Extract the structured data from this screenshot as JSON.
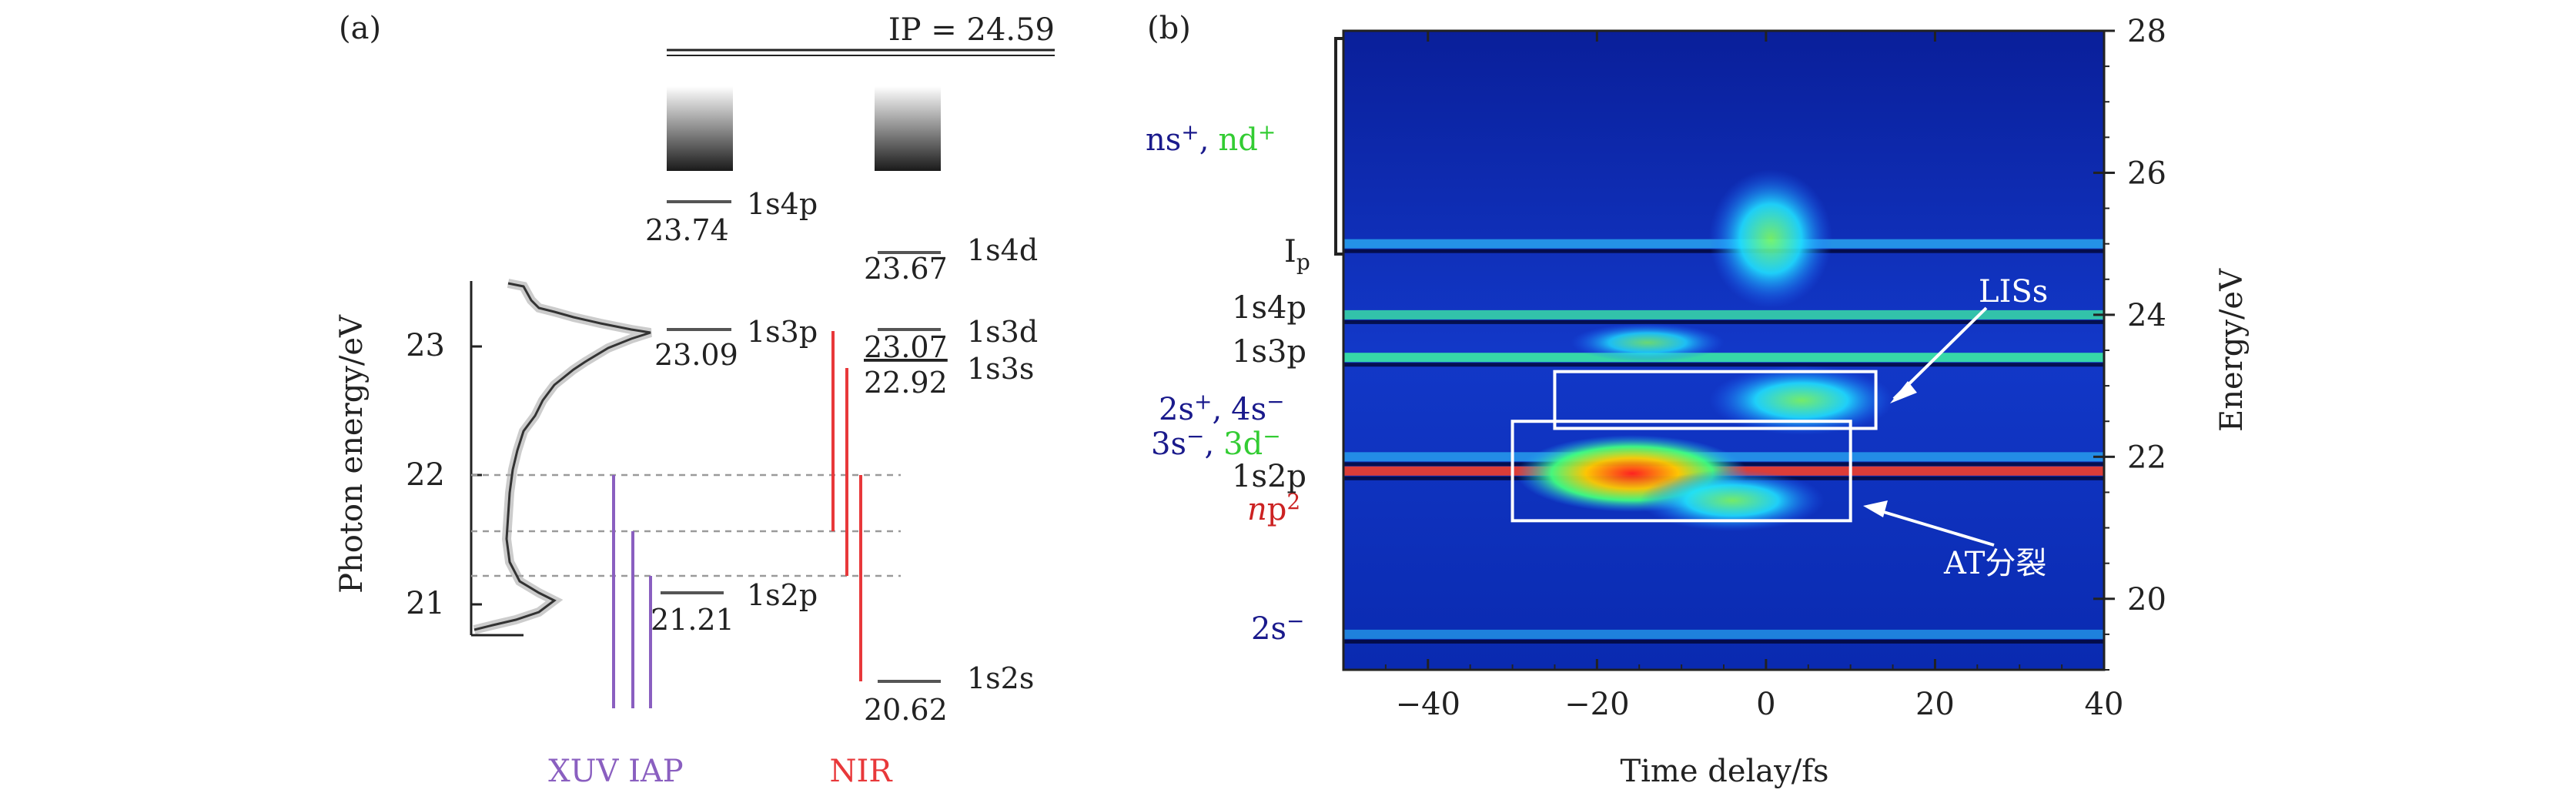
{
  "panel_a": {
    "label": "(a)",
    "ip_label": "IP = 24.59",
    "spectrum_ylabel": "Photon energy/eV",
    "spectrum_ticks": [
      "21",
      "22",
      "23"
    ],
    "levels_p": [
      {
        "name": "1s4p",
        "energy_label": "23.74"
      },
      {
        "name": "1s3p",
        "energy_label": "23.09"
      },
      {
        "name": "1s2p",
        "energy_label": "21.21"
      }
    ],
    "levels_sd": [
      {
        "name": "1s4d",
        "energy_label": "23.67"
      },
      {
        "name": "1s3d",
        "energy_label": "23.07"
      },
      {
        "name": "1s3s",
        "energy_label": "22.92"
      },
      {
        "name": "1s2s",
        "energy_label": "20.62"
      }
    ],
    "xuv_label": "XUV IAP",
    "nir_label": "NIR",
    "colors": {
      "xuv": "#8a5fc0",
      "nir": "#e8383a",
      "level": "#333333",
      "dashed": "#9a9a9a"
    }
  },
  "panel_b": {
    "label": "(b)",
    "left_labels": {
      "ns_plus": "ns",
      "ns_sup": "+",
      "comma": ",",
      "nd_plus": "nd",
      "nd_sup": "+",
      "ip": "I",
      "ip_sub": "p",
      "s1s4p": "1s4p",
      "s1s3p": "1s3p",
      "two_s_plus": "2s",
      "two_s_sup": "+",
      "four_s_minus": "4s",
      "four_s_sup": "−",
      "three_s_minus": "3s",
      "three_s_sup": "−",
      "three_d_minus": "3d",
      "three_d_sup": "−",
      "s1s2p": "1s2p",
      "np2": "n",
      "np2_rest": "p",
      "np2_sup": "2",
      "two_s_minus": "2s",
      "two_s_minus_sup": "−"
    },
    "annotations": {
      "liss": "LISs",
      "at": "AT分裂"
    },
    "colors": {
      "blue_label": "#1a1a8c",
      "green_label": "#33cc33",
      "red_label": "#cc2222"
    }
  },
  "chart_data": {
    "type": "heatmap",
    "title": "",
    "xlabel": "Time delay/fs",
    "ylabel": "Energy/eV",
    "xlim": [
      -50,
      40
    ],
    "ylim": [
      19,
      28
    ],
    "x_ticks": [
      -40,
      -20,
      0,
      20,
      40
    ],
    "x_tick_labels": [
      "−40",
      "−20",
      "0",
      "20",
      "40"
    ],
    "y_ticks": [
      20,
      22,
      24,
      26,
      28
    ],
    "y_tick_labels": [
      "20",
      "22",
      "24",
      "26",
      "28"
    ],
    "horizontal_lines_eV": [
      {
        "energy": 25.0,
        "name": "Ip continuum",
        "intensity": 0.6
      },
      {
        "energy": 24.0,
        "name": "1s4p",
        "intensity": 0.7
      },
      {
        "energy": 23.4,
        "name": "1s3p",
        "intensity": 0.9
      },
      {
        "energy": 22.0,
        "name": "3s-/3d-",
        "intensity": 0.5
      },
      {
        "energy": 21.8,
        "name": "1s2p",
        "intensity": 1.0
      },
      {
        "energy": 19.5,
        "name": "2s-",
        "intensity": 0.4
      }
    ],
    "boxes": [
      {
        "name": "LISs",
        "x0": -25,
        "x1": 13,
        "y0": 22.4,
        "y1": 23.2
      },
      {
        "name": "AT splitting",
        "x0": -30,
        "x1": 10,
        "y0": 21.1,
        "y1": 22.5
      }
    ]
  }
}
